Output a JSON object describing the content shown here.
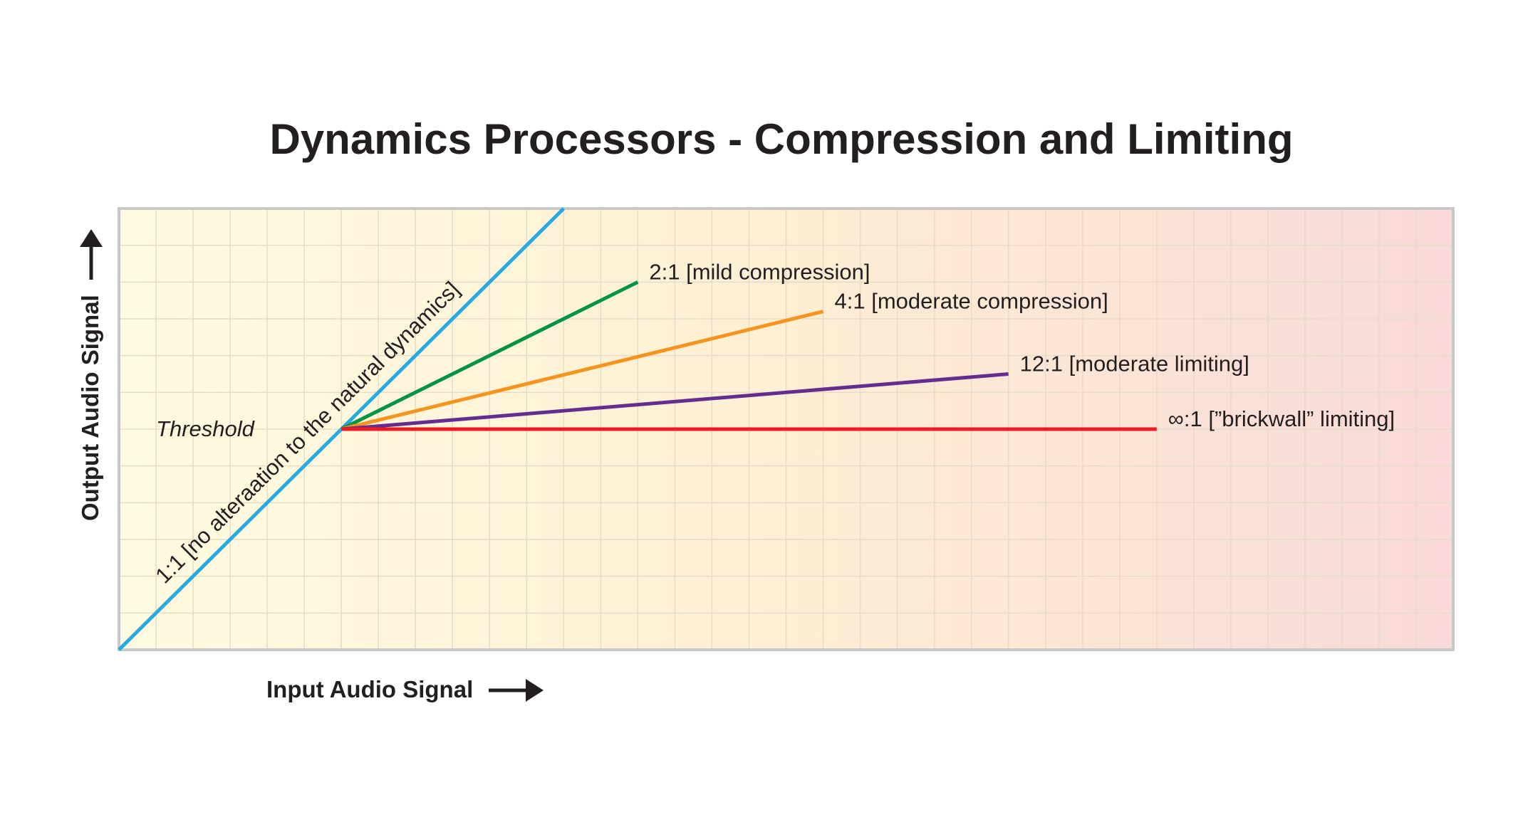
{
  "chart_data": {
    "type": "line",
    "title": "Dynamics Processors - Compression and Limiting",
    "xlabel": "Input Audio Signal",
    "ylabel": "Output Audio Signal",
    "xlim": [
      0,
      36
    ],
    "ylim": [
      0,
      12
    ],
    "grid": true,
    "threshold": {
      "label": "Threshold",
      "x": 6,
      "y": 6
    },
    "unity": {
      "label": "1:1 [no alteraation to the natural dynamics]",
      "color": "#27aae1",
      "points": [
        [
          0,
          0
        ],
        [
          12,
          12
        ]
      ]
    },
    "series": [
      {
        "name": "2:1 [mild compression]",
        "color": "#009444",
        "points": [
          [
            6,
            6
          ],
          [
            14,
            10
          ]
        ]
      },
      {
        "name": "4:1 [moderate compression]",
        "color": "#f7941d",
        "points": [
          [
            6,
            6
          ],
          [
            19,
            9.2
          ]
        ]
      },
      {
        "name": "12:1 [moderate limiting]",
        "color": "#662d91",
        "points": [
          [
            6,
            6
          ],
          [
            24,
            7.5
          ]
        ]
      },
      {
        "name": "∞:1 [”brickwall” limiting]",
        "color": "#ed1c24",
        "points": [
          [
            6,
            6
          ],
          [
            28,
            6
          ]
        ]
      }
    ],
    "background": {
      "from": "#fffbe0",
      "via": "#fdefd3",
      "to": "#f9d9d9"
    },
    "grid_color": "#e6dcc8",
    "frame_color": "#c8c8c8"
  }
}
